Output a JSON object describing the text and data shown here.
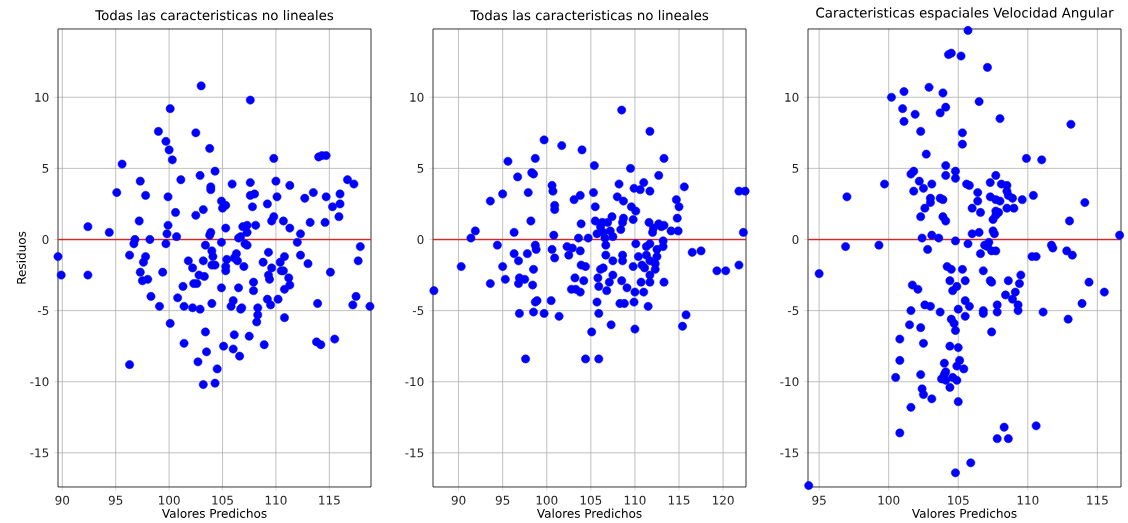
{
  "chart_data": [
    {
      "type": "scatter",
      "title": "Todas las caracteristicas no lineales",
      "xlabel": "Valores Predichos",
      "ylabel": "Residuos",
      "color": "#0000ff",
      "marker": "circle",
      "grid": true,
      "xlim": [
        89.6,
        118.9
      ],
      "ylim": [
        -17.4,
        14.8
      ],
      "xticks": [
        90,
        95,
        100,
        105,
        110,
        115
      ],
      "yticks": [
        -15,
        -10,
        -5,
        0,
        5,
        10
      ],
      "ref_lines": [
        {
          "axis": "y",
          "value": 0,
          "color": "#d62728"
        }
      ],
      "x": [
        89.6,
        89.9,
        92.4,
        92.4,
        94.4,
        95.1,
        95.6,
        96.3,
        96.3,
        96.8,
        96.7,
        97.2,
        97.3,
        97.3,
        97.6,
        97.5,
        97.8,
        97.8,
        98.0,
        98.2,
        98.3,
        99.0,
        99.1,
        99.4,
        99.7,
        99.7,
        99.8,
        99.9,
        99.9,
        100.0,
        100.1,
        100.1,
        100.3,
        100.6,
        100.7,
        100.8,
        101.1,
        101.3,
        101.4,
        101.4,
        101.8,
        102.2,
        102.2,
        102.3,
        102.5,
        102.5,
        102.6,
        102.7,
        102.8,
        102.9,
        102.9,
        103.0,
        103.2,
        103.2,
        103.2,
        103.3,
        103.4,
        103.4,
        103.5,
        103.8,
        103.9,
        103.9,
        103.9,
        103.8,
        104.0,
        104.0,
        104.0,
        104.1,
        104.3,
        104.3,
        104.3,
        104.5,
        104.9,
        104.9,
        104.9,
        105.0,
        105.1,
        105.3,
        105.3,
        105.3,
        105.4,
        105.3,
        105.8,
        105.9,
        106.0,
        106.1,
        106.0,
        106.1,
        106.3,
        106.4,
        106.5,
        106.5,
        106.6,
        106.7,
        106.7,
        106.8,
        106.9,
        107.0,
        107.1,
        107.3,
        107.3,
        107.3,
        107.5,
        107.6,
        107.6,
        107.6,
        107.8,
        107.9,
        107.9,
        108.0,
        108.1,
        108.3,
        108.3,
        108.2,
        108.8,
        108.9,
        109.2,
        109.3,
        109.3,
        109.4,
        109.2,
        109.5,
        109.6,
        109.6,
        109.8,
        109.8,
        110.0,
        110.1,
        110.2,
        110.4,
        110.5,
        110.7,
        110.7,
        110.8,
        110.8,
        110.8,
        111.2,
        111.3,
        111.3,
        111.3,
        112.0,
        112.3,
        112.3,
        112.7,
        113.0,
        113.2,
        113.5,
        113.9,
        113.8,
        114.0,
        114.2,
        114.3,
        114.7,
        114.6,
        114.7,
        115.1,
        115.3,
        115.5,
        116.0,
        116.0,
        115.9,
        116.7,
        117.2,
        117.3,
        117.5,
        117.7,
        117.9,
        118.8
      ],
      "values": [
        -1.2,
        -2.5,
        0.9,
        -2.5,
        0.5,
        3.3,
        5.3,
        -1.1,
        -8.8,
        0.0,
        -0.3,
        1.3,
        4.1,
        -2.3,
        -1.6,
        -2.9,
        -1.2,
        3.1,
        -2.8,
        0.0,
        -4.0,
        7.6,
        -4.7,
        -2.3,
        6.9,
        -0.3,
        0.4,
        3.0,
        1.0,
        6.3,
        9.2,
        -5.9,
        5.6,
        1.9,
        0.2,
        -4.1,
        4.2,
        -3.3,
        -4.7,
        -7.3,
        -1.5,
        -2.0,
        -4.8,
        -3.1,
        1.7,
        7.5,
        -3.1,
        -8.6,
        -2.5,
        4.5,
        -4.9,
        10.8,
        -10.2,
        2.1,
        -1.5,
        -2.6,
        -0.4,
        -6.5,
        -7.9,
        6.4,
        3.5,
        3.7,
        0.5,
        0.3,
        -4.5,
        -0.8,
        -1.8,
        -1.2,
        -1.8,
        4.8,
        -10.1,
        -9.1,
        -0.2,
        -3.4,
        2.7,
        2.2,
        -7.5,
        0.8,
        -1.9,
        2.4,
        -1.4,
        -2.2,
        -4.7,
        3.9,
        -4.3,
        -6.7,
        -7.7,
        -1.3,
        -1.0,
        -1.5,
        0.1,
        -3.4,
        -8.2,
        -4.9,
        0.2,
        -4.8,
        0.9,
        -1.9,
        -0.3,
        0.5,
        1.0,
        -0.4,
        -6.8,
        4.0,
        9.8,
        3.1,
        2.3,
        -3.0,
        -3.6,
        3.2,
        1.0,
        -4.8,
        -5.3,
        -5.8,
        -1.6,
        -7.4,
        2.5,
        -0.9,
        -2.5,
        -2.8,
        -4.2,
        -4.6,
        1.3,
        -2.0,
        1.6,
        5.7,
        4.1,
        3.0,
        -4.2,
        -1.6,
        -2.2,
        1.3,
        -2.2,
        -1.2,
        -3.5,
        -5.5,
        -2.7,
        3.8,
        0.8,
        -3.2,
        -0.2,
        0.4,
        -1.1,
        2.9,
        -1.7,
        1.2,
        3.3,
        -4.5,
        -7.2,
        5.8,
        -7.4,
        5.9,
        5.9,
        1.2,
        3.0,
        -2.3,
        2.3,
        -7.0,
        3.2,
        2.5,
        1.6,
        4.2,
        -4.6,
        3.9,
        -4.0,
        -1.5,
        -0.5,
        -4.7
      ]
    },
    {
      "type": "scatter",
      "title": "Todas las caracteristicas no lineales",
      "xlabel": "Valores Predichos",
      "color": "#0000ff",
      "marker": "circle",
      "grid": true,
      "xlim": [
        87.1,
        122.6
      ],
      "ylim": [
        -17.4,
        14.8
      ],
      "xticks": [
        90,
        95,
        100,
        105,
        110,
        115,
        120
      ],
      "yticks": [
        -15,
        -10,
        -5,
        0,
        5,
        10
      ],
      "ref_lines": [
        {
          "axis": "y",
          "value": 0,
          "color": "#d62728"
        }
      ],
      "x": [
        87.2,
        90.3,
        91.4,
        91.9,
        93.6,
        93.6,
        94.4,
        95.0,
        95.0,
        95.6,
        95.3,
        96.3,
        96.3,
        96.7,
        96.8,
        96.8,
        96.9,
        96.9,
        97.5,
        97.6,
        97.8,
        97.9,
        98.2,
        98.3,
        98.5,
        98.4,
        98.5,
        98.5,
        98.7,
        98.7,
        98.8,
        98.7,
        98.9,
        99.7,
        99.7,
        100.5,
        100.6,
        100.6,
        100.7,
        100.8,
        100.9,
        100.9,
        100.9,
        101.4,
        101.7,
        102.3,
        102.5,
        102.9,
        103.1,
        102.8,
        103.2,
        103.3,
        103.6,
        103.8,
        103.8,
        103.9,
        103.8,
        103.9,
        104.0,
        104.2,
        104.4,
        104.4,
        104.7,
        105.1,
        105.3,
        105.4,
        105.5,
        105.5,
        105.7,
        105.7,
        105.8,
        105.9,
        105.9,
        105.9,
        106.1,
        106.1,
        106.3,
        106.4,
        106.4,
        106.6,
        106.7,
        106.7,
        106.8,
        106.9,
        107.1,
        107.2,
        107.3,
        107.4,
        107.5,
        107.5,
        107.5,
        108.2,
        108.0,
        108.3,
        108.4,
        108.5,
        108.5,
        108.6,
        108.6,
        108.6,
        108.7,
        108.7,
        108.8,
        109.1,
        109.5,
        109.6,
        109.8,
        109.8,
        109.9,
        109.9,
        110.0,
        110.0,
        110.1,
        110.1,
        110.4,
        110.6,
        110.7,
        110.8,
        111.0,
        111.0,
        111.1,
        111.3,
        111.3,
        111.5,
        111.6,
        111.7,
        111.7,
        111.7,
        111.7,
        111.7,
        111.7,
        112.0,
        112.1,
        112.3,
        112.3,
        112.5,
        112.5,
        112.7,
        112.7,
        113.0,
        113.2,
        113.2,
        113.3,
        113.3,
        113.3,
        114.1,
        114.7,
        114.8,
        115.0,
        114.9,
        115.4,
        115.6,
        115.8,
        116.5,
        117.5,
        119.3,
        120.3,
        121.8,
        121.8,
        122.3,
        122.5
      ],
      "values": [
        -3.6,
        -1.9,
        0.1,
        0.6,
        2.7,
        -3.1,
        -0.4,
        3.2,
        -1.9,
        5.5,
        -2.8,
        0.5,
        -1.0,
        4.4,
        -1.5,
        -3.1,
        -2.7,
        -5.2,
        -2.8,
        -8.4,
        -1.0,
        3.3,
        1.3,
        4.7,
        4.6,
        -3.2,
        -2.1,
        -5.1,
        5.7,
        -0.4,
        -0.7,
        -4.4,
        -4.3,
        7.0,
        -5.2,
        -4.3,
        3.8,
        -0.7,
        3.4,
        0.3,
        2.4,
        2.1,
        -1.3,
        -5.4,
        6.6,
        -0.5,
        -1.1,
        -0.6,
        2.8,
        -3.5,
        -2.7,
        -3.5,
        0.1,
        3.1,
        -0.8,
        1.1,
        -3.7,
        -1.8,
        6.3,
        -2.9,
        -1.9,
        -8.4,
        0.1,
        -6.5,
        3.3,
        5.2,
        2.3,
        1.3,
        0.4,
        -4.4,
        -2.7,
        -5.2,
        -8.4,
        -3.3,
        -2.1,
        0.9,
        1.2,
        -2.0,
        0.5,
        0.1,
        -1.1,
        -0.4,
        -3.6,
        1.2,
        -3.0,
        0.6,
        -6.0,
        1.6,
        -2.5,
        -1.5,
        0.2,
        3.9,
        3.0,
        -4.5,
        0.7,
        9.1,
        -2.9,
        1.2,
        -1.5,
        -1.1,
        2.7,
        1.5,
        -4.5,
        -3.4,
        5.0,
        2.3,
        1.4,
        -1.9,
        3.6,
        -4.4,
        -3.7,
        -6.3,
        -0.3,
        2.0,
        -1.2,
        3.5,
        -3.0,
        -1.8,
        -3.7,
        4.0,
        -2.0,
        -0.5,
        -1.1,
        -4.7,
        1.2,
        -3.0,
        3.4,
        7.6,
        -2.5,
        -0.3,
        -1.5,
        0.5,
        0.8,
        -2.1,
        -1.7,
        -1.2,
        -0.7,
        4.5,
        1.1,
        0.9,
        -0.5,
        -0.1,
        -3.0,
        5.7,
        1.0,
        0.6,
        2.8,
        1.5,
        2.3,
        0.6,
        -6.1,
        3.7,
        -5.3,
        -0.9,
        -0.8,
        -2.2,
        -2.2,
        -1.8,
        3.4,
        0.5,
        3.4
      ]
    },
    {
      "type": "scatter",
      "title": "Caracteristicas espaciales Velocidad Angular",
      "xlabel": "Valores Predichos",
      "color": "#0000ff",
      "marker": "circle",
      "grid": true,
      "xlim": [
        94.2,
        116.7
      ],
      "ylim": [
        -17.4,
        14.8
      ],
      "xticks": [
        95,
        100,
        105,
        110,
        115
      ],
      "yticks": [
        -15,
        -10,
        -5,
        0,
        5,
        10
      ],
      "ref_lines": [
        {
          "axis": "y",
          "value": 0,
          "color": "#d62728"
        }
      ],
      "x": [
        94.25,
        95.0,
        97.0,
        96.9,
        99.3,
        99.7,
        100.2,
        100.5,
        100.8,
        100.8,
        100.8,
        101.0,
        101.1,
        101.1,
        101.5,
        101.6,
        101.6,
        101.6,
        101.7,
        101.8,
        101.8,
        101.9,
        102.1,
        102.2,
        102.3,
        102.3,
        102.3,
        102.3,
        102.4,
        102.4,
        102.5,
        102.5,
        102.5,
        102.6,
        102.6,
        102.7,
        102.8,
        102.9,
        103.0,
        103.0,
        103.0,
        103.1,
        103.1,
        103.1,
        103.6,
        103.7,
        103.7,
        103.7,
        103.8,
        103.9,
        103.9,
        103.9,
        104.0,
        104.0,
        104.1,
        104.1,
        104.1,
        104.1,
        104.1,
        104.1,
        104.2,
        104.3,
        104.4,
        104.4,
        104.4,
        104.5,
        104.5,
        104.5,
        104.6,
        104.6,
        104.7,
        104.8,
        104.8,
        104.8,
        104.8,
        104.8,
        104.9,
        104.9,
        104.9,
        105.0,
        105.0,
        105.0,
        105.1,
        105.2,
        105.3,
        105.3,
        105.3,
        105.4,
        105.5,
        105.5,
        105.5,
        105.6,
        105.7,
        105.7,
        105.8,
        105.8,
        105.9,
        106.0,
        106.0,
        106.4,
        106.4,
        106.5,
        106.5,
        106.6,
        106.6,
        106.8,
        106.8,
        106.8,
        106.9,
        107.1,
        107.1,
        107.2,
        107.3,
        107.3,
        107.3,
        107.4,
        107.4,
        107.4,
        107.5,
        107.5,
        107.6,
        107.7,
        107.7,
        107.7,
        107.7,
        107.7,
        107.8,
        107.8,
        107.8,
        107.9,
        108.0,
        108.0,
        108.1,
        108.3,
        108.4,
        108.5,
        108.5,
        108.5,
        108.6,
        108.6,
        108.6,
        108.9,
        108.9,
        109.0,
        109.1,
        109.3,
        109.3,
        109.4,
        109.5,
        109.6,
        109.9,
        110.3,
        110.4,
        110.6,
        110.6,
        111.0,
        111.1,
        111.7,
        111.8,
        112.8,
        112.9,
        113.0,
        113.1,
        113.2,
        113.9,
        114.1,
        114.4,
        115.5,
        116.6
      ],
      "values": [
        -17.3,
        -2.4,
        3.0,
        -0.5,
        -0.4,
        3.9,
        10.0,
        -9.7,
        -8.5,
        -7.0,
        -13.6,
        9.2,
        8.3,
        10.4,
        -6.0,
        4.6,
        -5.0,
        -11.8,
        -3.2,
        3.4,
        4.8,
        8.8,
        -3.5,
        4.1,
        1.6,
        7.6,
        -6.2,
        -9.5,
        0.1,
        -10.5,
        -10.9,
        -7.3,
        3.6,
        -4.6,
        2.2,
        6.0,
        -0.7,
        10.7,
        -4.7,
        2.6,
        2.9,
        0.3,
        -11.2,
        3.9,
        0.1,
        -5.1,
        8.9,
        2.9,
        -9.8,
        2.8,
        1.6,
        10.3,
        -8.7,
        -9.5,
        9.3,
        1.3,
        5.2,
        4.5,
        -9.9,
        -9.3,
        -1.9,
        13.0,
        -2.9,
        -7.5,
        -10.4,
        -2.1,
        -5.6,
        13.1,
        -3.6,
        -9.7,
        -5.9,
        -0.1,
        -16.4,
        -6.4,
        4.8,
        4.3,
        -8.9,
        -3.3,
        -9.9,
        -7.6,
        -11.4,
        -4.9,
        -8.5,
        12.9,
        7.5,
        6.7,
        -2.1,
        -9.1,
        -2.9,
        -5.4,
        -4.3,
        3.9,
        14.7,
        -0.3,
        3.8,
        -4.7,
        -15.7,
        0.4,
        2.2,
        3.3,
        2.7,
        9.7,
        0.5,
        -1.0,
        1.9,
        -2.2,
        -5.0,
        -5.2,
        -0.4,
        -0.5,
        12.1,
        -0.2,
        4.0,
        3.0,
        -2.9,
        -0.8,
        -3.0,
        -6.5,
        1.4,
        0.6,
        0.4,
        4.5,
        2.8,
        2.0,
        1.7,
        -0.8,
        -4.6,
        -5.1,
        -14.0,
        1.9,
        8.5,
        2.7,
        3.9,
        -13.2,
        -3.9,
        3.8,
        3.4,
        2.2,
        -14.0,
        -2.9,
        3.1,
        2.9,
        -4.2,
        2.2,
        -3.7,
        -4.6,
        -5.0,
        -3.1,
        -2.5,
        2.8,
        5.7,
        -1.2,
        3.1,
        -13.1,
        -1.2,
        5.6,
        -5.1,
        -0.4,
        -0.6,
        -0.8,
        -5.6,
        1.3,
        8.1,
        -1.1,
        -4.5,
        2.6,
        -3.0,
        -3.7,
        0.3
      ]
    }
  ]
}
